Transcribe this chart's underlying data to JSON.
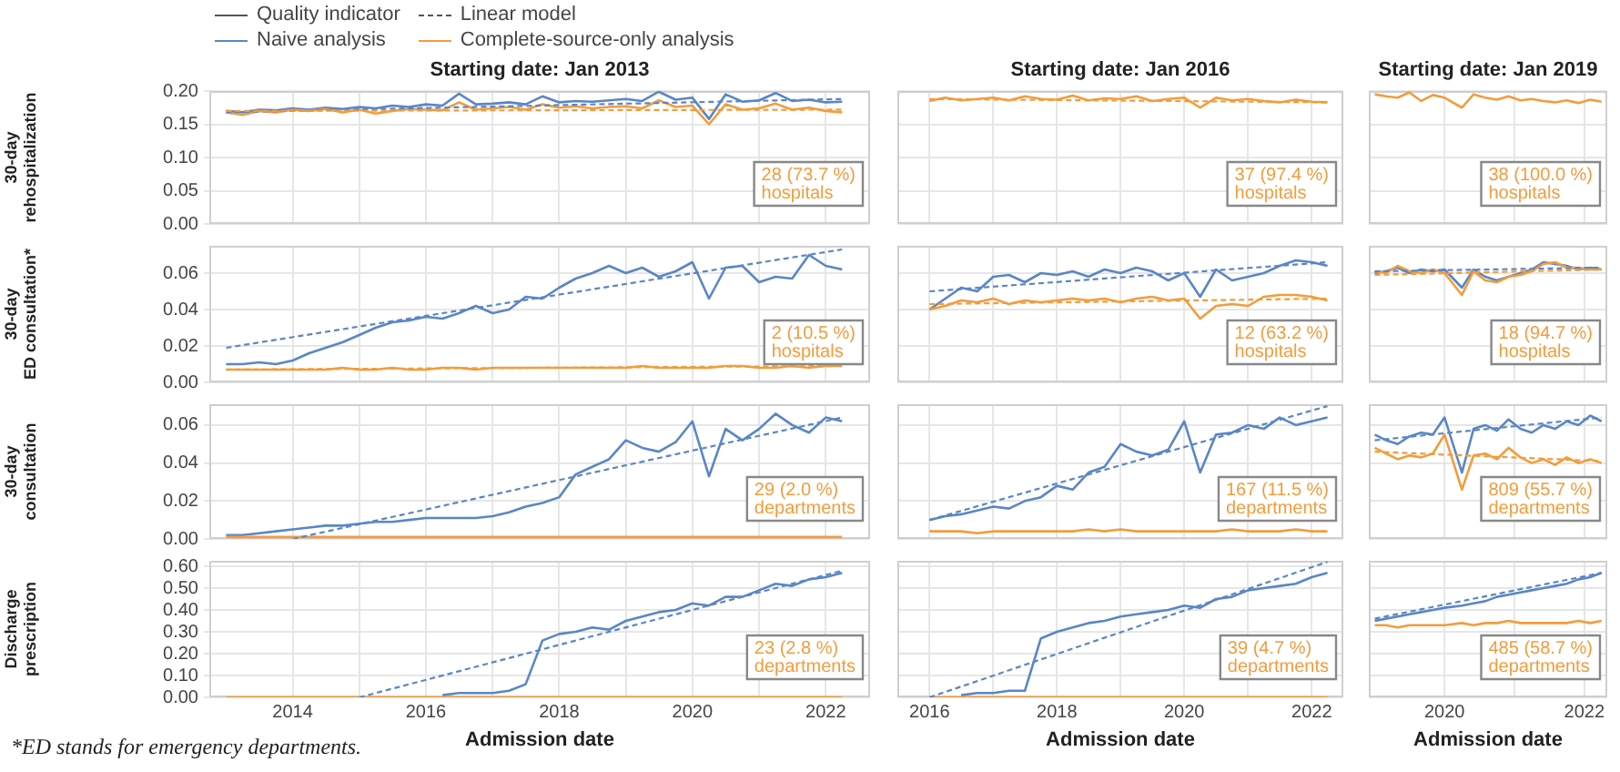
{
  "chart_data": [
    {
      "type": "line",
      "title": "Starting date: Jan 2013",
      "ylabel": "30-day rehospitalization",
      "legend": "top",
      "grid": true,
      "tick_labels": "y",
      "x": [
        "2013-01",
        "2013-04",
        "2013-07",
        "2013-10",
        "2014-01",
        "2014-04",
        "2014-07",
        "2014-10",
        "2015-01",
        "2015-04",
        "2015-07",
        "2015-10",
        "2016-01",
        "2016-04",
        "2016-07",
        "2016-10",
        "2017-01",
        "2017-04",
        "2017-07",
        "2017-10",
        "2018-01",
        "2018-04",
        "2018-07",
        "2018-10",
        "2019-01",
        "2019-04",
        "2019-07",
        "2019-10",
        "2020-01",
        "2020-04",
        "2020-07",
        "2020-10",
        "2021-01",
        "2021-04",
        "2021-07",
        "2021-10",
        "2022-01",
        "2022-04"
      ],
      "xlim": [
        "2012-10",
        "2022-09"
      ],
      "xticks": [
        "2014",
        {
          "value": "2015",
          "label": null
        },
        "2016",
        {
          "value": "2017",
          "label": null
        },
        "2018",
        {
          "value": "2019",
          "label": null
        },
        "2020",
        {
          "value": "2021",
          "label": null
        },
        "2022"
      ],
      "ylim": [
        0,
        0.2
      ],
      "yticks": [
        {
          "value": 0,
          "label": "0.00"
        },
        {
          "value": 0.05,
          "label": "0.05"
        },
        {
          "value": 0.1,
          "label": "0.10"
        },
        {
          "value": 0.15,
          "label": "0.15"
        },
        {
          "value": 0.2,
          "label": "0.20"
        }
      ],
      "annotations": [
        "28 (73.7 %)\nhospitals"
      ],
      "series": [
        {
          "name": "Quality indicator",
          "color": "#555555",
          "values": [
            null,
            null,
            null,
            null,
            null,
            null,
            null,
            null,
            null,
            null,
            null,
            null,
            null,
            null,
            null,
            null,
            null,
            null,
            null,
            null,
            null,
            null,
            null,
            null,
            null,
            null,
            null,
            null,
            null,
            null,
            null,
            null,
            null,
            null,
            null,
            null,
            null,
            null
          ]
        },
        {
          "name": "Linear model",
          "color": "#555555",
          "line_style": "dashed",
          "values": [
            null,
            null,
            null,
            null,
            null,
            null,
            null,
            null,
            null,
            null,
            null,
            null,
            null,
            null,
            null,
            null,
            null,
            null,
            null,
            null,
            null,
            null,
            null,
            null,
            null,
            null,
            null,
            null,
            null,
            null,
            null,
            null,
            null,
            null,
            null,
            null,
            null,
            null
          ]
        },
        {
          "name": "Naive analysis",
          "color": "#5a86c5",
          "values": [
            0.17,
            0.168,
            0.172,
            0.171,
            0.174,
            0.172,
            0.175,
            0.173,
            0.176,
            0.174,
            0.178,
            0.176,
            0.18,
            0.178,
            0.196,
            0.18,
            0.181,
            0.183,
            0.18,
            0.192,
            0.183,
            0.185,
            0.184,
            0.186,
            0.188,
            0.185,
            0.199,
            0.187,
            0.19,
            0.158,
            0.195,
            0.184,
            0.186,
            0.197,
            0.185,
            0.187,
            0.183,
            0.184
          ]
        },
        {
          "name": "Complete-source-only analysis",
          "color": "#f39c3c",
          "values": [
            0.168,
            0.164,
            0.17,
            0.168,
            0.172,
            0.17,
            0.173,
            0.168,
            0.172,
            0.166,
            0.17,
            0.173,
            0.172,
            0.171,
            0.183,
            0.172,
            0.174,
            0.176,
            0.172,
            0.18,
            0.175,
            0.177,
            0.174,
            0.176,
            0.177,
            0.174,
            0.186,
            0.176,
            0.178,
            0.15,
            0.18,
            0.172,
            0.174,
            0.181,
            0.172,
            0.175,
            0.17,
            0.168
          ]
        },
        {
          "type": "line",
          "color": "#5a86c5",
          "line_style": "dashed",
          "x": [
            "2013-01",
            "2022-04"
          ],
          "values": [
            0.168,
            0.188
          ]
        },
        {
          "type": "line",
          "color": "#f39c3c",
          "line_style": "dashed",
          "x": [
            "2013-01",
            "2022-04"
          ],
          "values": [
            0.17,
            0.172
          ]
        }
      ]
    },
    {
      "type": "line",
      "title": "Starting date: Jan 2016",
      "grid": true,
      "tick_labels": false,
      "x": [
        "2016-01",
        "2016-04",
        "2016-07",
        "2016-10",
        "2017-01",
        "2017-04",
        "2017-07",
        "2017-10",
        "2018-01",
        "2018-04",
        "2018-07",
        "2018-10",
        "2019-01",
        "2019-04",
        "2019-07",
        "2019-10",
        "2020-01",
        "2020-04",
        "2020-07",
        "2020-10",
        "2021-01",
        "2021-04",
        "2021-07",
        "2021-10",
        "2022-01",
        "2022-04"
      ],
      "xlim": [
        "2015-07",
        "2022-07"
      ],
      "xticks": [
        "2016",
        {
          "value": "2017",
          "label": null
        },
        "2018",
        {
          "value": "2019",
          "label": null
        },
        "2020",
        {
          "value": "2021",
          "label": null
        },
        "2022"
      ],
      "ylim": [
        0,
        0.2
      ],
      "yticks": [
        0,
        0.05,
        0.1,
        0.15,
        0.2
      ],
      "annotations": [
        "37 (97.4 %)\nhospitals"
      ],
      "series": [
        {
          "color": "#f39c3c",
          "values": [
            0.185,
            0.19,
            0.186,
            0.188,
            0.19,
            0.186,
            0.192,
            0.188,
            0.187,
            0.193,
            0.186,
            0.189,
            0.188,
            0.192,
            0.185,
            0.188,
            0.19,
            0.175,
            0.19,
            0.186,
            0.188,
            0.185,
            0.183,
            0.187,
            0.184,
            0.183
          ]
        },
        {
          "type": "line",
          "color": "#f39c3c",
          "line_style": "dashed",
          "x": [
            "2016-01",
            "2022-04"
          ],
          "values": [
            0.188,
            0.183
          ]
        }
      ]
    },
    {
      "type": "line",
      "title": "Starting date: Jan 2019",
      "grid": true,
      "tick_labels": false,
      "x": [
        "2019-01",
        "2019-03",
        "2019-05",
        "2019-07",
        "2019-09",
        "2019-11",
        "2020-01",
        "2020-04",
        "2020-06",
        "2020-08",
        "2020-10",
        "2020-12",
        "2021-02",
        "2021-04",
        "2021-06",
        "2021-08",
        "2021-10",
        "2021-12",
        "2022-02",
        "2022-04"
      ],
      "xlim": [
        "2018-12",
        "2022-05"
      ],
      "xticks": [
        "2020",
        {
          "value": "2021",
          "label": null
        },
        "2022"
      ],
      "ylim": [
        0,
        0.2
      ],
      "yticks": [
        0,
        0.05,
        0.1,
        0.15,
        0.2
      ],
      "annotations": [
        "38 (100.0 %)\nhospitals"
      ],
      "series": [
        {
          "color": "#f39c3c",
          "values": [
            0.195,
            0.192,
            0.19,
            0.198,
            0.185,
            0.194,
            0.19,
            0.175,
            0.195,
            0.19,
            0.187,
            0.192,
            0.186,
            0.188,
            0.185,
            0.183,
            0.186,
            0.182,
            0.187,
            0.184
          ]
        }
      ]
    },
    {
      "type": "line",
      "ylabel": "30-day ED consultation*",
      "grid": true,
      "tick_labels": "y",
      "x": [
        "2013-01",
        "2013-04",
        "2013-07",
        "2013-10",
        "2014-01",
        "2014-04",
        "2014-07",
        "2014-10",
        "2015-01",
        "2015-04",
        "2015-07",
        "2015-10",
        "2016-01",
        "2016-04",
        "2016-07",
        "2016-10",
        "2017-01",
        "2017-04",
        "2017-07",
        "2017-10",
        "2018-01",
        "2018-04",
        "2018-07",
        "2018-10",
        "2019-01",
        "2019-04",
        "2019-07",
        "2019-10",
        "2020-01",
        "2020-04",
        "2020-07",
        "2020-10",
        "2021-01",
        "2021-04",
        "2021-07",
        "2021-10",
        "2022-01",
        "2022-04"
      ],
      "xlim": [
        "2012-10",
        "2022-09"
      ],
      "xticks": [
        "2014",
        {
          "value": "2015",
          "label": null
        },
        "2016",
        {
          "value": "2017",
          "label": null
        },
        "2018",
        {
          "value": "2019",
          "label": null
        },
        "2020",
        {
          "value": "2021",
          "label": null
        },
        "2022"
      ],
      "ylim": [
        0,
        0.075
      ],
      "yticks": [
        {
          "value": 0,
          "label": "0.00"
        },
        {
          "value": 0.02,
          "label": "0.02"
        },
        {
          "value": 0.04,
          "label": "0.04"
        },
        {
          "value": 0.06,
          "label": "0.06"
        }
      ],
      "annotations": [
        "2 (10.5 %)\nhospitals"
      ],
      "series": [
        {
          "color": "#5a86c5",
          "values": [
            0.01,
            0.01,
            0.011,
            0.01,
            0.012,
            0.016,
            0.019,
            0.022,
            0.026,
            0.03,
            0.033,
            0.034,
            0.036,
            0.035,
            0.038,
            0.042,
            0.038,
            0.04,
            0.047,
            0.046,
            0.052,
            0.057,
            0.06,
            0.064,
            0.06,
            0.063,
            0.058,
            0.061,
            0.066,
            0.046,
            0.063,
            0.064,
            0.055,
            0.058,
            0.057,
            0.07,
            0.064,
            0.062
          ]
        },
        {
          "color": "#f39c3c",
          "values": [
            0.007,
            0.007,
            0.007,
            0.007,
            0.007,
            0.007,
            0.007,
            0.008,
            0.007,
            0.007,
            0.008,
            0.007,
            0.007,
            0.008,
            0.008,
            0.007,
            0.008,
            0.008,
            0.008,
            0.008,
            0.008,
            0.008,
            0.008,
            0.008,
            0.008,
            0.009,
            0.008,
            0.008,
            0.008,
            0.008,
            0.009,
            0.009,
            0.008,
            0.008,
            0.009,
            0.008,
            0.009,
            0.009
          ]
        },
        {
          "type": "line",
          "color": "#5a86c5",
          "line_style": "dashed",
          "x": [
            "2013-01",
            "2022-04"
          ],
          "values": [
            0.019,
            0.073
          ]
        },
        {
          "type": "line",
          "color": "#f39c3c",
          "line_style": "dashed",
          "x": [
            "2013-01",
            "2022-04"
          ],
          "values": [
            0.007,
            0.009
          ]
        }
      ]
    },
    {
      "type": "line",
      "grid": true,
      "tick_labels": false,
      "x": [
        "2016-01",
        "2016-04",
        "2016-07",
        "2016-10",
        "2017-01",
        "2017-04",
        "2017-07",
        "2017-10",
        "2018-01",
        "2018-04",
        "2018-07",
        "2018-10",
        "2019-01",
        "2019-04",
        "2019-07",
        "2019-10",
        "2020-01",
        "2020-04",
        "2020-07",
        "2020-10",
        "2021-01",
        "2021-04",
        "2021-07",
        "2021-10",
        "2022-01",
        "2022-04"
      ],
      "xlim": [
        "2015-07",
        "2022-07"
      ],
      "xticks": [
        "2016",
        {
          "value": "2017",
          "label": null
        },
        "2018",
        {
          "value": "2019",
          "label": null
        },
        "2020",
        {
          "value": "2021",
          "label": null
        },
        "2022"
      ],
      "ylim": [
        0,
        0.075
      ],
      "yticks": [
        0,
        0.02,
        0.04,
        0.06
      ],
      "annotations": [
        "12 (63.2 %)\nhospitals"
      ],
      "series": [
        {
          "color": "#5a86c5",
          "values": [
            0.04,
            0.046,
            0.052,
            0.05,
            0.058,
            0.059,
            0.055,
            0.06,
            0.059,
            0.061,
            0.058,
            0.062,
            0.06,
            0.063,
            0.061,
            0.056,
            0.06,
            0.047,
            0.062,
            0.056,
            0.058,
            0.06,
            0.064,
            0.067,
            0.066,
            0.064
          ]
        },
        {
          "color": "#f39c3c",
          "values": [
            0.04,
            0.042,
            0.045,
            0.044,
            0.046,
            0.043,
            0.045,
            0.044,
            0.045,
            0.046,
            0.045,
            0.046,
            0.044,
            0.046,
            0.047,
            0.045,
            0.046,
            0.035,
            0.042,
            0.043,
            0.042,
            0.047,
            0.048,
            0.048,
            0.047,
            0.045
          ]
        },
        {
          "type": "line",
          "color": "#5a86c5",
          "line_style": "dashed",
          "x": [
            "2016-01",
            "2022-04"
          ],
          "values": [
            0.05,
            0.066
          ]
        },
        {
          "type": "line",
          "color": "#f39c3c",
          "line_style": "dashed",
          "x": [
            "2016-01",
            "2022-04"
          ],
          "values": [
            0.043,
            0.046
          ]
        }
      ]
    },
    {
      "type": "line",
      "grid": true,
      "tick_labels": false,
      "x": [
        "2019-01",
        "2019-03",
        "2019-05",
        "2019-07",
        "2019-09",
        "2019-11",
        "2020-01",
        "2020-04",
        "2020-06",
        "2020-08",
        "2020-10",
        "2020-12",
        "2021-02",
        "2021-04",
        "2021-06",
        "2021-08",
        "2021-10",
        "2021-12",
        "2022-02",
        "2022-04"
      ],
      "xlim": [
        "2018-12",
        "2022-05"
      ],
      "xticks": [
        "2020",
        {
          "value": "2021",
          "label": null
        },
        "2022"
      ],
      "ylim": [
        0,
        0.075
      ],
      "yticks": [
        0,
        0.02,
        0.04,
        0.06
      ],
      "annotations": [
        "18 (94.7 %)\nhospitals"
      ],
      "series": [
        {
          "color": "#5a86c5",
          "values": [
            0.06,
            0.061,
            0.063,
            0.06,
            0.062,
            0.061,
            0.062,
            0.052,
            0.062,
            0.058,
            0.056,
            0.058,
            0.06,
            0.062,
            0.066,
            0.065,
            0.064,
            0.062,
            0.063,
            0.062
          ]
        },
        {
          "color": "#f39c3c",
          "values": [
            0.061,
            0.06,
            0.064,
            0.061,
            0.06,
            0.062,
            0.06,
            0.048,
            0.061,
            0.056,
            0.055,
            0.058,
            0.059,
            0.061,
            0.065,
            0.066,
            0.063,
            0.063,
            0.062,
            0.062
          ]
        },
        {
          "type": "line",
          "color": "#5a86c5",
          "line_style": "dashed",
          "x": [
            "2019-01",
            "2022-04"
          ],
          "values": [
            0.061,
            0.063
          ]
        },
        {
          "type": "line",
          "color": "#f39c3c",
          "line_style": "dashed",
          "x": [
            "2019-01",
            "2022-04"
          ],
          "values": [
            0.059,
            0.062
          ]
        }
      ]
    },
    {
      "type": "line",
      "ylabel": "30-day consultation",
      "grid": true,
      "tick_labels": "y",
      "x": [
        "2013-01",
        "2013-04",
        "2013-07",
        "2013-10",
        "2014-01",
        "2014-04",
        "2014-07",
        "2014-10",
        "2015-01",
        "2015-04",
        "2015-07",
        "2015-10",
        "2016-01",
        "2016-04",
        "2016-07",
        "2016-10",
        "2017-01",
        "2017-04",
        "2017-07",
        "2017-10",
        "2018-01",
        "2018-04",
        "2018-07",
        "2018-10",
        "2019-01",
        "2019-04",
        "2019-07",
        "2019-10",
        "2020-01",
        "2020-04",
        "2020-07",
        "2020-10",
        "2021-01",
        "2021-04",
        "2021-07",
        "2021-10",
        "2022-01",
        "2022-04"
      ],
      "xlim": [
        "2012-10",
        "2022-09"
      ],
      "xticks": [
        "2014",
        {
          "value": "2015",
          "label": null
        },
        "2016",
        {
          "value": "2017",
          "label": null
        },
        "2018",
        {
          "value": "2019",
          "label": null
        },
        "2020",
        {
          "value": "2021",
          "label": null
        },
        "2022"
      ],
      "ylim": [
        0,
        0.071
      ],
      "yticks": [
        {
          "value": 0,
          "label": "0.00"
        },
        {
          "value": 0.02,
          "label": "0.02"
        },
        {
          "value": 0.04,
          "label": "0.04"
        },
        {
          "value": 0.06,
          "label": "0.06"
        }
      ],
      "annotations": [
        "29 (2.0 %)\ndepartments"
      ],
      "series": [
        {
          "color": "#5a86c5",
          "values": [
            0.002,
            0.002,
            0.003,
            0.004,
            0.005,
            0.006,
            0.007,
            0.007,
            0.008,
            0.009,
            0.009,
            0.01,
            0.011,
            0.011,
            0.011,
            0.011,
            0.012,
            0.014,
            0.017,
            0.019,
            0.022,
            0.034,
            0.038,
            0.042,
            0.052,
            0.048,
            0.046,
            0.051,
            0.062,
            0.033,
            0.058,
            0.052,
            0.058,
            0.066,
            0.06,
            0.056,
            0.064,
            0.062
          ]
        },
        {
          "color": "#f39c3c",
          "values": [
            0.001,
            0.001,
            0.001,
            0.001,
            0.001,
            0.001,
            0.001,
            0.001,
            0.001,
            0.001,
            0.001,
            0.001,
            0.001,
            0.001,
            0.001,
            0.001,
            0.001,
            0.001,
            0.001,
            0.001,
            0.001,
            0.001,
            0.001,
            0.001,
            0.001,
            0.001,
            0.001,
            0.001,
            0.001,
            0.001,
            0.001,
            0.001,
            0.001,
            0.001,
            0.001,
            0.001,
            0.001,
            0.001
          ]
        },
        {
          "type": "line",
          "color": "#5a86c5",
          "line_style": "dashed",
          "x": [
            "2014-01",
            "2022-04"
          ],
          "values": [
            0.0,
            0.064
          ]
        }
      ]
    },
    {
      "type": "line",
      "grid": true,
      "tick_labels": false,
      "x": [
        "2016-01",
        "2016-04",
        "2016-07",
        "2016-10",
        "2017-01",
        "2017-04",
        "2017-07",
        "2017-10",
        "2018-01",
        "2018-04",
        "2018-07",
        "2018-10",
        "2019-01",
        "2019-04",
        "2019-07",
        "2019-10",
        "2020-01",
        "2020-04",
        "2020-07",
        "2020-10",
        "2021-01",
        "2021-04",
        "2021-07",
        "2021-10",
        "2022-01",
        "2022-04"
      ],
      "xlim": [
        "2015-07",
        "2022-07"
      ],
      "xticks": [
        "2016",
        {
          "value": "2017",
          "label": null
        },
        "2018",
        {
          "value": "2019",
          "label": null
        },
        "2020",
        {
          "value": "2021",
          "label": null
        },
        "2022"
      ],
      "ylim": [
        0,
        0.071
      ],
      "yticks": [
        0,
        0.02,
        0.04,
        0.06
      ],
      "annotations": [
        "167 (11.5 %)\ndepartments"
      ],
      "series": [
        {
          "color": "#5a86c5",
          "values": [
            0.01,
            0.012,
            0.013,
            0.015,
            0.017,
            0.016,
            0.02,
            0.022,
            0.028,
            0.026,
            0.035,
            0.038,
            0.05,
            0.046,
            0.044,
            0.047,
            0.062,
            0.035,
            0.055,
            0.056,
            0.06,
            0.058,
            0.064,
            0.06,
            0.062,
            0.064
          ]
        },
        {
          "color": "#f39c3c",
          "values": [
            0.004,
            0.004,
            0.004,
            0.003,
            0.004,
            0.004,
            0.004,
            0.004,
            0.004,
            0.004,
            0.005,
            0.004,
            0.005,
            0.004,
            0.004,
            0.004,
            0.004,
            0.004,
            0.004,
            0.005,
            0.004,
            0.004,
            0.004,
            0.005,
            0.004,
            0.004
          ]
        },
        {
          "type": "line",
          "color": "#5a86c5",
          "line_style": "dashed",
          "x": [
            "2016-01",
            "2022-04"
          ],
          "values": [
            0.01,
            0.07
          ]
        }
      ]
    },
    {
      "type": "line",
      "grid": true,
      "tick_labels": false,
      "x": [
        "2019-01",
        "2019-03",
        "2019-05",
        "2019-07",
        "2019-09",
        "2019-11",
        "2020-01",
        "2020-04",
        "2020-06",
        "2020-08",
        "2020-10",
        "2020-12",
        "2021-02",
        "2021-04",
        "2021-06",
        "2021-08",
        "2021-10",
        "2021-12",
        "2022-02",
        "2022-04"
      ],
      "xlim": [
        "2018-12",
        "2022-05"
      ],
      "xticks": [
        "2020",
        {
          "value": "2021",
          "label": null
        },
        "2022"
      ],
      "ylim": [
        0,
        0.071
      ],
      "yticks": [
        0,
        0.02,
        0.04,
        0.06
      ],
      "annotations": [
        "809 (55.7 %)\ndepartments"
      ],
      "series": [
        {
          "color": "#5a86c5",
          "values": [
            0.055,
            0.052,
            0.05,
            0.054,
            0.056,
            0.055,
            0.064,
            0.035,
            0.058,
            0.06,
            0.057,
            0.063,
            0.058,
            0.056,
            0.06,
            0.058,
            0.062,
            0.06,
            0.065,
            0.062
          ]
        },
        {
          "color": "#f39c3c",
          "values": [
            0.048,
            0.045,
            0.042,
            0.044,
            0.043,
            0.045,
            0.055,
            0.026,
            0.044,
            0.045,
            0.042,
            0.048,
            0.043,
            0.04,
            0.042,
            0.039,
            0.043,
            0.04,
            0.042,
            0.04
          ]
        },
        {
          "type": "line",
          "color": "#5a86c5",
          "line_style": "dashed",
          "x": [
            "2019-01",
            "2022-04"
          ],
          "values": [
            0.052,
            0.064
          ]
        },
        {
          "type": "line",
          "color": "#f39c3c",
          "line_style": "dashed",
          "x": [
            "2019-01",
            "2022-04"
          ],
          "values": [
            0.046,
            0.041
          ]
        }
      ]
    },
    {
      "type": "line",
      "ylabel": "Discharge prescription",
      "xlabel": "Admission date",
      "grid": true,
      "x": [
        "2013-01",
        "2013-04",
        "2013-07",
        "2013-10",
        "2014-01",
        "2014-04",
        "2014-07",
        "2014-10",
        "2015-01",
        "2015-04",
        "2015-07",
        "2015-10",
        "2016-01",
        "2016-04",
        "2016-07",
        "2016-10",
        "2017-01",
        "2017-04",
        "2017-07",
        "2017-10",
        "2018-01",
        "2018-04",
        "2018-07",
        "2018-10",
        "2019-01",
        "2019-04",
        "2019-07",
        "2019-10",
        "2020-01",
        "2020-04",
        "2020-07",
        "2020-10",
        "2021-01",
        "2021-04",
        "2021-07",
        "2021-10",
        "2022-01",
        "2022-04"
      ],
      "xlim": [
        "2012-10",
        "2022-09"
      ],
      "xticks": [
        "2014",
        {
          "value": "2015",
          "label": null
        },
        "2016",
        {
          "value": "2017",
          "label": null
        },
        "2018",
        {
          "value": "2019",
          "label": null
        },
        "2020",
        {
          "value": "2021",
          "label": null
        },
        "2022"
      ],
      "ylim": [
        0,
        0.625
      ],
      "yticks": [
        {
          "value": 0,
          "label": "0.00"
        },
        {
          "value": 0.1,
          "label": "0.10"
        },
        {
          "value": 0.2,
          "label": "0.20"
        },
        {
          "value": 0.3,
          "label": "0.30"
        },
        {
          "value": 0.4,
          "label": "0.40"
        },
        {
          "value": 0.5,
          "label": "0.50"
        },
        {
          "value": 0.6,
          "label": "0.60"
        }
      ],
      "annotations": [
        "23 (2.8 %)\ndepartments",
        "*ED stands for emergency departments."
      ],
      "series": [
        {
          "color": "#5a86c5",
          "values": [
            null,
            null,
            null,
            null,
            null,
            null,
            null,
            null,
            null,
            null,
            null,
            null,
            null,
            0.01,
            0.02,
            0.02,
            0.02,
            0.03,
            0.06,
            0.26,
            0.29,
            0.3,
            0.32,
            0.31,
            0.35,
            0.37,
            0.39,
            0.4,
            0.43,
            0.42,
            0.46,
            0.46,
            0.49,
            0.52,
            0.51,
            0.54,
            0.55,
            0.57
          ]
        },
        {
          "color": "#f39c3c",
          "values": [
            0,
            0,
            0,
            0,
            0,
            0,
            0,
            0,
            0,
            0,
            0,
            0,
            0,
            0,
            0,
            0,
            0,
            0,
            0,
            0,
            0,
            0,
            0,
            0,
            0,
            0,
            0,
            0,
            0,
            0,
            0,
            0,
            0,
            0,
            0,
            0,
            0,
            0
          ]
        },
        {
          "type": "line",
          "color": "#5a86c5",
          "line_style": "dashed",
          "x": [
            "2015-01",
            "2022-04"
          ],
          "values": [
            0.0,
            0.58
          ]
        }
      ]
    },
    {
      "type": "line",
      "xlabel": "Admission date",
      "grid": true,
      "tick_labels": "x",
      "x": [
        "2016-01",
        "2016-04",
        "2016-07",
        "2016-10",
        "2017-01",
        "2017-04",
        "2017-07",
        "2017-10",
        "2018-01",
        "2018-04",
        "2018-07",
        "2018-10",
        "2019-01",
        "2019-04",
        "2019-07",
        "2019-10",
        "2020-01",
        "2020-04",
        "2020-07",
        "2020-10",
        "2021-01",
        "2021-04",
        "2021-07",
        "2021-10",
        "2022-01",
        "2022-04"
      ],
      "xlim": [
        "2015-07",
        "2022-07"
      ],
      "xticks": [
        "2016",
        {
          "value": "2017",
          "label": null
        },
        "2018",
        {
          "value": "2019",
          "label": null
        },
        "2020",
        {
          "value": "2021",
          "label": null
        },
        "2022"
      ],
      "ylim": [
        0,
        0.625
      ],
      "yticks": [
        0,
        0.1,
        0.2,
        0.3,
        0.4,
        0.5,
        0.6
      ],
      "annotations": [
        "39 (4.7 %)\ndepartments"
      ],
      "series": [
        {
          "color": "#5a86c5",
          "values": [
            null,
            null,
            0.01,
            0.02,
            0.02,
            0.03,
            0.03,
            0.27,
            0.3,
            0.32,
            0.34,
            0.35,
            0.37,
            0.38,
            0.39,
            0.4,
            0.42,
            0.41,
            0.45,
            0.46,
            0.49,
            0.5,
            0.51,
            0.52,
            0.55,
            0.57
          ]
        },
        {
          "color": "#f39c3c",
          "values": [
            0,
            0,
            0,
            0,
            0,
            0,
            0,
            0,
            0,
            0,
            0,
            0,
            0,
            0,
            0,
            0,
            0,
            0,
            0,
            0,
            0,
            0,
            0,
            0,
            0,
            0
          ]
        },
        {
          "type": "line",
          "color": "#5a86c5",
          "line_style": "dashed",
          "x": [
            "2016-01",
            "2022-04"
          ],
          "values": [
            0.0,
            0.62
          ]
        }
      ]
    },
    {
      "type": "line",
      "xlabel": "Admission date",
      "grid": true,
      "tick_labels": "x",
      "x": [
        "2019-01",
        "2019-03",
        "2019-05",
        "2019-07",
        "2019-09",
        "2019-11",
        "2020-01",
        "2020-04",
        "2020-06",
        "2020-08",
        "2020-10",
        "2020-12",
        "2021-02",
        "2021-04",
        "2021-06",
        "2021-08",
        "2021-10",
        "2021-12",
        "2022-02",
        "2022-04"
      ],
      "xlim": [
        "2018-12",
        "2022-05"
      ],
      "xticks": [
        "2020",
        {
          "value": "2021",
          "label": null
        },
        "2022"
      ],
      "ylim": [
        0,
        0.625
      ],
      "yticks": [
        0,
        0.1,
        0.2,
        0.3,
        0.4,
        0.5,
        0.6
      ],
      "annotations": [
        "485 (58.7 %)\ndepartments"
      ],
      "series": [
        {
          "color": "#5a86c5",
          "values": [
            0.35,
            0.36,
            0.37,
            0.38,
            0.39,
            0.4,
            0.41,
            0.42,
            0.43,
            0.44,
            0.46,
            0.47,
            0.48,
            0.49,
            0.5,
            0.51,
            0.52,
            0.54,
            0.55,
            0.57
          ]
        },
        {
          "color": "#f39c3c",
          "values": [
            0.33,
            0.33,
            0.32,
            0.33,
            0.33,
            0.33,
            0.33,
            0.34,
            0.33,
            0.34,
            0.34,
            0.35,
            0.34,
            0.34,
            0.34,
            0.34,
            0.34,
            0.35,
            0.34,
            0.35
          ]
        },
        {
          "type": "line",
          "color": "#5a86c5",
          "line_style": "dashed",
          "x": [
            "2019-01",
            "2022-04"
          ],
          "values": [
            0.36,
            0.57
          ]
        }
      ]
    }
  ]
}
